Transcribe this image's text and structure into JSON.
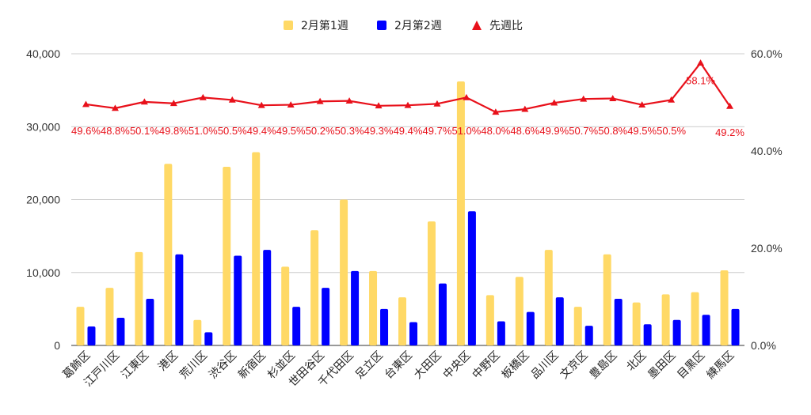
{
  "chart_data": {
    "type": "bar",
    "categories": [
      "葛飾区",
      "江戸川区",
      "江東区",
      "港区",
      "荒川区",
      "渋谷区",
      "新宿区",
      "杉並区",
      "世田谷区",
      "千代田区",
      "足立区",
      "台東区",
      "大田区",
      "中央区",
      "中野区",
      "板橋区",
      "品川区",
      "文京区",
      "豊島区",
      "北区",
      "墨田区",
      "目黒区",
      "練馬区"
    ],
    "series": [
      {
        "name": "2月第1週",
        "kind": "bar",
        "axis": "left",
        "color": "#FFD966",
        "values": [
          5300,
          7900,
          12800,
          24900,
          3500,
          24500,
          26500,
          10800,
          15800,
          20000,
          10200,
          6600,
          17000,
          36200,
          6900,
          9400,
          13100,
          5300,
          12500,
          5900,
          7000,
          7300,
          10300
        ]
      },
      {
        "name": "2月第2週",
        "kind": "bar",
        "axis": "left",
        "color": "#0000FF",
        "values": [
          2600,
          3800,
          6400,
          12500,
          1800,
          12300,
          13100,
          5300,
          7900,
          10200,
          5000,
          3200,
          8500,
          18400,
          3300,
          4600,
          6600,
          2700,
          6400,
          2900,
          3500,
          4200,
          5000
        ]
      },
      {
        "name": "先週比",
        "kind": "line",
        "axis": "right",
        "color": "#E8101A",
        "marker": "triangle",
        "values": [
          49.6,
          48.8,
          50.1,
          49.8,
          51.0,
          50.5,
          49.4,
          49.5,
          50.2,
          50.3,
          49.3,
          49.4,
          49.7,
          51.0,
          48.0,
          48.6,
          49.9,
          50.7,
          50.8,
          49.5,
          50.5,
          58.1,
          49.2
        ],
        "labels": [
          "49.6%",
          "48.8%",
          "50.1%",
          "49.8%",
          "51.0%",
          "50.5%",
          "49.4%",
          "49.5%",
          "50.2%",
          "50.3%",
          "49.3%",
          "49.4%",
          "49.7%",
          "51.0%",
          "48.0%",
          "48.6%",
          "49.9%",
          "50.7%",
          "50.8%",
          "49.5%",
          "50.5%",
          "58.1%",
          "49.2%"
        ]
      }
    ],
    "y_left": {
      "min": 0,
      "max": 40000,
      "ticks": [
        "0",
        "10,000",
        "20,000",
        "30,000",
        "40,000"
      ],
      "tick_values": [
        0,
        10000,
        20000,
        30000,
        40000
      ]
    },
    "y_right": {
      "min": 0,
      "max": 60,
      "ticks": [
        "0.0%",
        "20.0%",
        "40.0%",
        "60.0%"
      ],
      "tick_values": [
        0,
        20,
        40,
        60
      ]
    },
    "grid": true,
    "legend_position": "top-center"
  }
}
